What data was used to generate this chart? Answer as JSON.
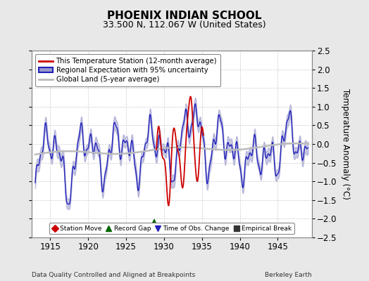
{
  "title": "PHOENIX INDIAN SCHOOL",
  "subtitle": "33.500 N, 112.067 W (United States)",
  "ylabel": "Temperature Anomaly (°C)",
  "xlabel_left": "Data Quality Controlled and Aligned at Breakpoints",
  "xlabel_right": "Berkeley Earth",
  "xlim": [
    1912.5,
    1949.5
  ],
  "ylim": [
    -2.5,
    2.5
  ],
  "xticks": [
    1915,
    1920,
    1925,
    1930,
    1935,
    1940,
    1945
  ],
  "yticks": [
    -2.5,
    -2,
    -1.5,
    -1,
    -0.5,
    0,
    0.5,
    1,
    1.5,
    2,
    2.5
  ],
  "background_color": "#e8e8e8",
  "plot_bg_color": "#ffffff",
  "grid_color": "#cccccc",
  "regional_color": "#2222bb",
  "regional_fill_color": "#9999cc",
  "station_color": "#cc0000",
  "global_color": "#bbbbbb",
  "record_gap_x": 1928.7,
  "record_gap_y": -2.08,
  "title_fontsize": 11,
  "subtitle_fontsize": 9,
  "legend_items": [
    {
      "label": "This Temperature Station (12-month average)",
      "color": "#cc0000",
      "lw": 2
    },
    {
      "label": "Regional Expectation with 95% uncertainty",
      "color": "#2222bb",
      "fill": "#9999cc"
    },
    {
      "label": "Global Land (5-year average)",
      "color": "#bbbbbb",
      "lw": 2
    }
  ],
  "marker_legend": [
    {
      "label": "Station Move",
      "marker": "D",
      "color": "#cc0000"
    },
    {
      "label": "Record Gap",
      "marker": "^",
      "color": "#006600"
    },
    {
      "label": "Time of Obs. Change",
      "marker": "v",
      "color": "#2222bb"
    },
    {
      "label": "Empirical Break",
      "marker": "s",
      "color": "#333333"
    }
  ]
}
